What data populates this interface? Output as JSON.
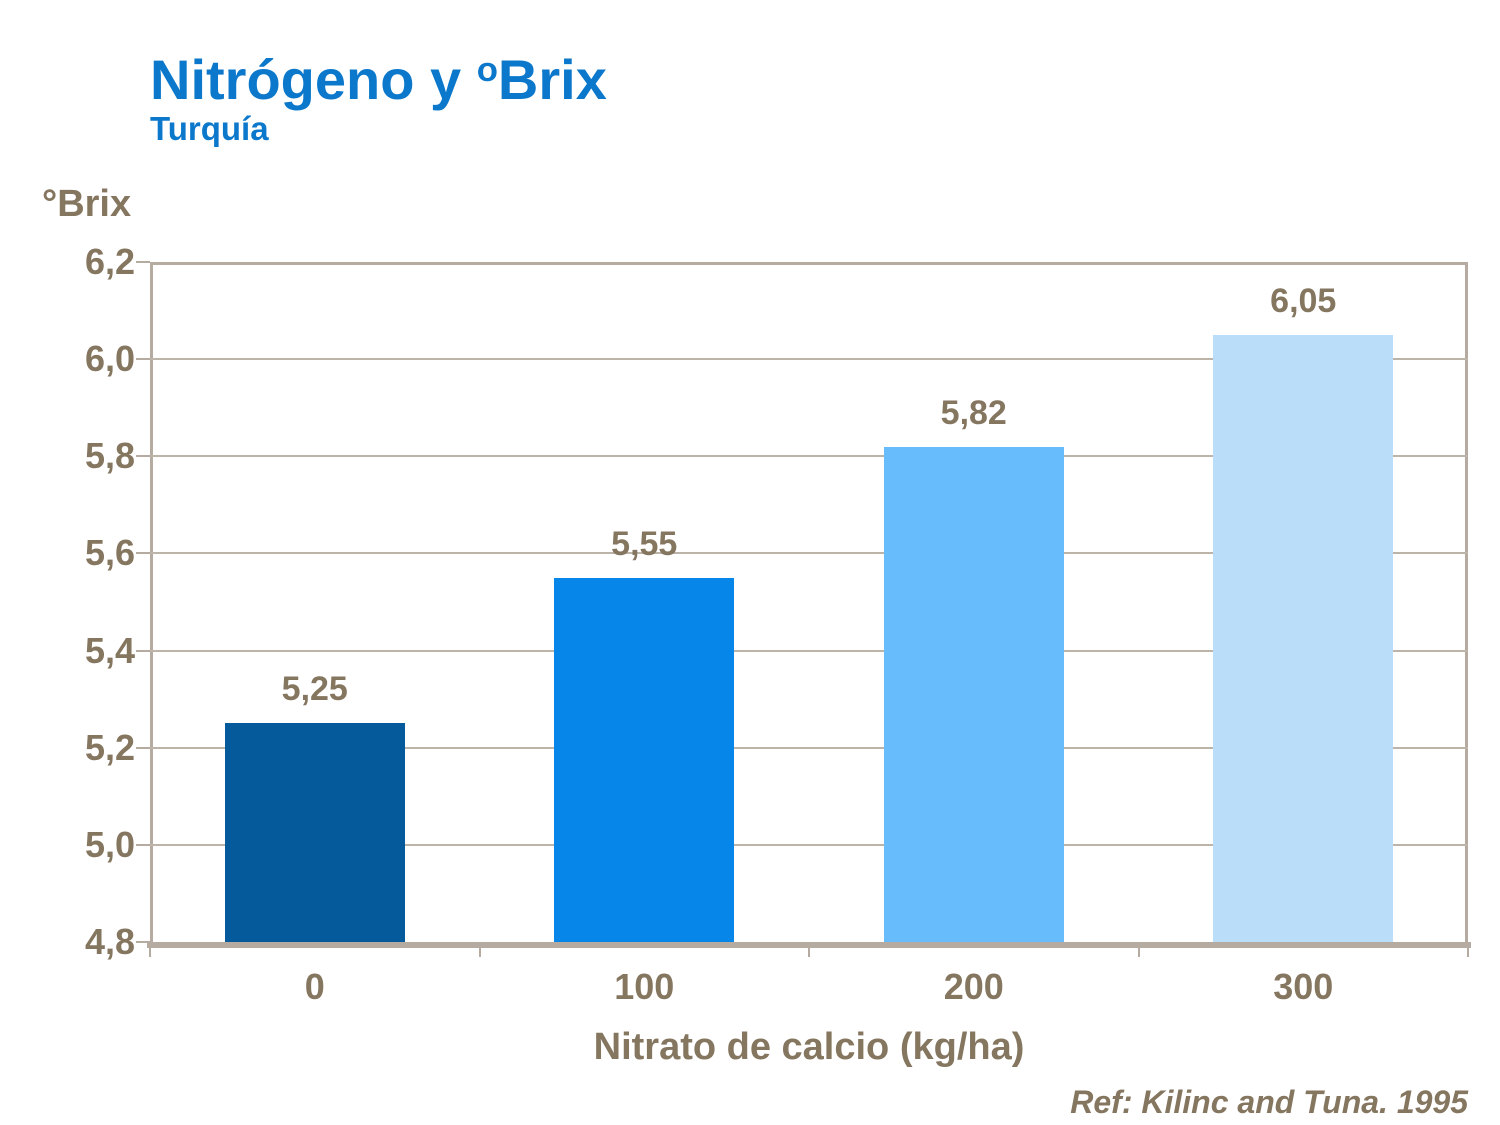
{
  "title": {
    "prefix": "Nitrógeno y ",
    "sup": "o",
    "rest": "Brix"
  },
  "subtitle": "Turquía",
  "y_axis_title": "°Brix",
  "x_axis_title": "Nitrato de calcio (kg/ha)",
  "reference": "Ref: Kilinc and Tuna. 1995",
  "colors": {
    "title_blue": "#0b78cc",
    "text_brown": "#857660",
    "frame": "#b5aba0",
    "gridline": "#bcb3a9",
    "bars": [
      "#055a9c",
      "#0686e9",
      "#67bdfb",
      "#baddfa"
    ]
  },
  "chart_data": {
    "type": "bar",
    "title": "Nitrógeno y ºBrix",
    "subtitle": "Turquía",
    "categories": [
      "0",
      "100",
      "200",
      "300"
    ],
    "values": [
      5.25,
      5.55,
      5.82,
      6.05
    ],
    "value_labels": [
      "5,25",
      "5,55",
      "5,82",
      "6,05"
    ],
    "xlabel": "Nitrato de calcio (kg/ha)",
    "ylabel": "°Brix",
    "ylim": [
      4.8,
      6.2
    ],
    "y_tick_values": [
      6.2,
      6.0,
      5.8,
      5.6,
      5.4,
      5.2,
      5.0,
      4.8
    ],
    "y_tick_labels": [
      "6,2",
      "6,0",
      "5,8",
      "5,6",
      "5,4",
      "5,2",
      "5,0",
      "4,8"
    ],
    "grid": "horizontal",
    "legend": "none",
    "annotation": "Ref: Kilinc and Tuna. 1995"
  }
}
